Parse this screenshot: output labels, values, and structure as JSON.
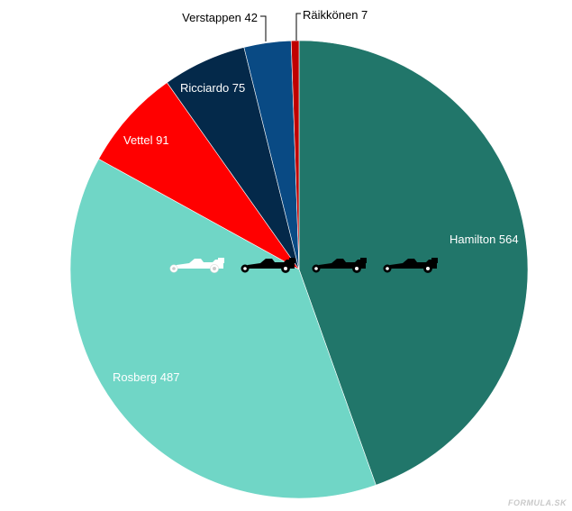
{
  "chart_data": {
    "type": "pie",
    "slices": [
      {
        "name": "Hamilton",
        "value": 564,
        "label": "Hamilton  564",
        "color": "#21766a",
        "label_color": "#ffffff"
      },
      {
        "name": "Rosberg",
        "value": 487,
        "label": "Rosberg  487",
        "color": "#70d6c6",
        "label_color": "#ffffff"
      },
      {
        "name": "Vettel",
        "value": 91,
        "label": "Vettel  91",
        "color": "#ff0000",
        "label_color": "#ffffff"
      },
      {
        "name": "Ricciardo",
        "value": 75,
        "label": "Ricciardo  75",
        "color": "#04294a",
        "label_color": "#ffffff"
      },
      {
        "name": "Verstappen",
        "value": 42,
        "label": "Verstappen  42",
        "color": "#094a84",
        "label_color": "#000000"
      },
      {
        "name": "Räikkönen",
        "value": 7,
        "label": "Räikkönen  7",
        "color": "#c00000",
        "label_color": "#000000"
      }
    ],
    "start_angle": "12 o'clock",
    "direction": "clockwise",
    "legend": "none",
    "car_icons": [
      {
        "name": "f1-car-icon",
        "color": "#ffffff"
      },
      {
        "name": "f1-car-icon",
        "color": "#000000"
      },
      {
        "name": "f1-car-icon",
        "color": "#000000"
      },
      {
        "name": "f1-car-icon",
        "color": "#000000"
      }
    ]
  },
  "watermark": "FORMULA.SK"
}
